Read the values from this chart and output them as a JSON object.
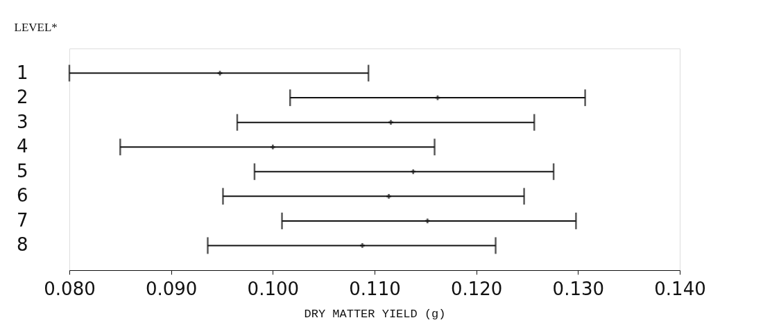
{
  "chart_data": {
    "type": "scatter",
    "orientation": "horizontal",
    "ylabel": "LEVEL*",
    "xlabel": "DRY MATTER YIELD (g)",
    "categories": [
      "1",
      "2",
      "3",
      "4",
      "5",
      "6",
      "7",
      "8"
    ],
    "values": [
      0.0948,
      0.1162,
      0.1116,
      0.1,
      0.1138,
      0.1114,
      0.1152,
      0.1088
    ],
    "errors": [
      [
        0.08,
        0.1094
      ],
      [
        0.1017,
        0.1307
      ],
      [
        0.0965,
        0.1257
      ],
      [
        0.085,
        0.1159
      ],
      [
        0.0982,
        0.1276
      ],
      [
        0.0951,
        0.1247
      ],
      [
        0.1009,
        0.1298
      ],
      [
        0.0936,
        0.1219
      ]
    ],
    "xlim": [
      0.08,
      0.14
    ],
    "xticks": [
      {
        "value": 0.08,
        "label": "0.080"
      },
      {
        "value": 0.09,
        "label": "0.090"
      },
      {
        "value": 0.1,
        "label": "0.100"
      },
      {
        "value": 0.11,
        "label": "0.110"
      },
      {
        "value": 0.12,
        "label": "0.120"
      },
      {
        "value": 0.13,
        "label": "0.130"
      },
      {
        "value": 0.14,
        "label": "0.140"
      }
    ],
    "grid": false,
    "marker": "cross"
  }
}
